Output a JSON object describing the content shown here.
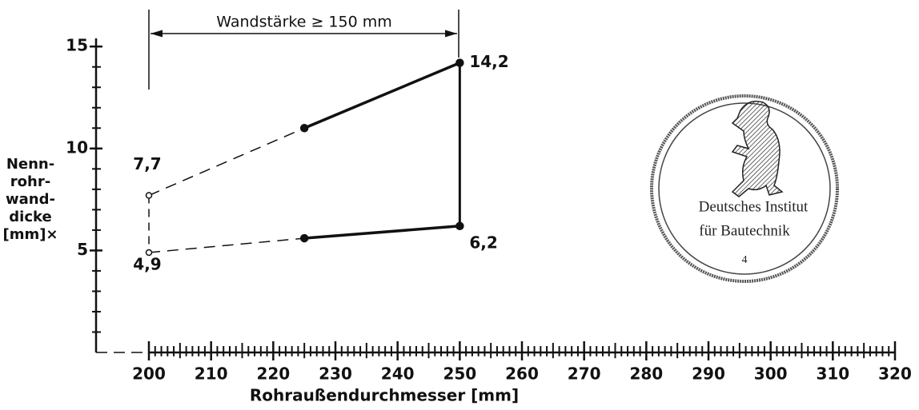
{
  "chart_data": {
    "type": "line",
    "annotation": "Wandstärke ≥ 150 mm",
    "ylabel_lines": [
      "Nenn-",
      "rohr-",
      "wand-",
      "dicke",
      "[mm]×"
    ],
    "xlabel": "Rohraußendurchmesser [mm]",
    "x": [
      200,
      225,
      250
    ],
    "series": [
      {
        "color": "#111111",
        "values": [
          7.7,
          11,
          14.2
        ],
        "value_labels": [
          "7,7",
          null,
          "14,2"
        ],
        "segment_styles": [
          "dashed",
          "solid"
        ],
        "markers": [
          "open",
          "filled",
          "filled"
        ]
      },
      {
        "color": "#111111",
        "values": [
          4.9,
          5.6,
          6.2
        ],
        "value_labels": [
          "4,9",
          null,
          "6,2"
        ],
        "segment_styles": [
          "dashed",
          "solid"
        ],
        "markers": [
          "open",
          "filled",
          "filled"
        ]
      }
    ],
    "xlim": [
      191.5,
      320
    ],
    "xticks": [
      200,
      210,
      220,
      230,
      240,
      250,
      260,
      270,
      280,
      290,
      300,
      310,
      320
    ],
    "ylim": [
      0,
      15.4
    ],
    "yticks": [
      5,
      10,
      15
    ],
    "grid": false
  },
  "stamp": {
    "lines": [
      "Deutsches Institut",
      "für Bautechnik",
      "4"
    ]
  }
}
